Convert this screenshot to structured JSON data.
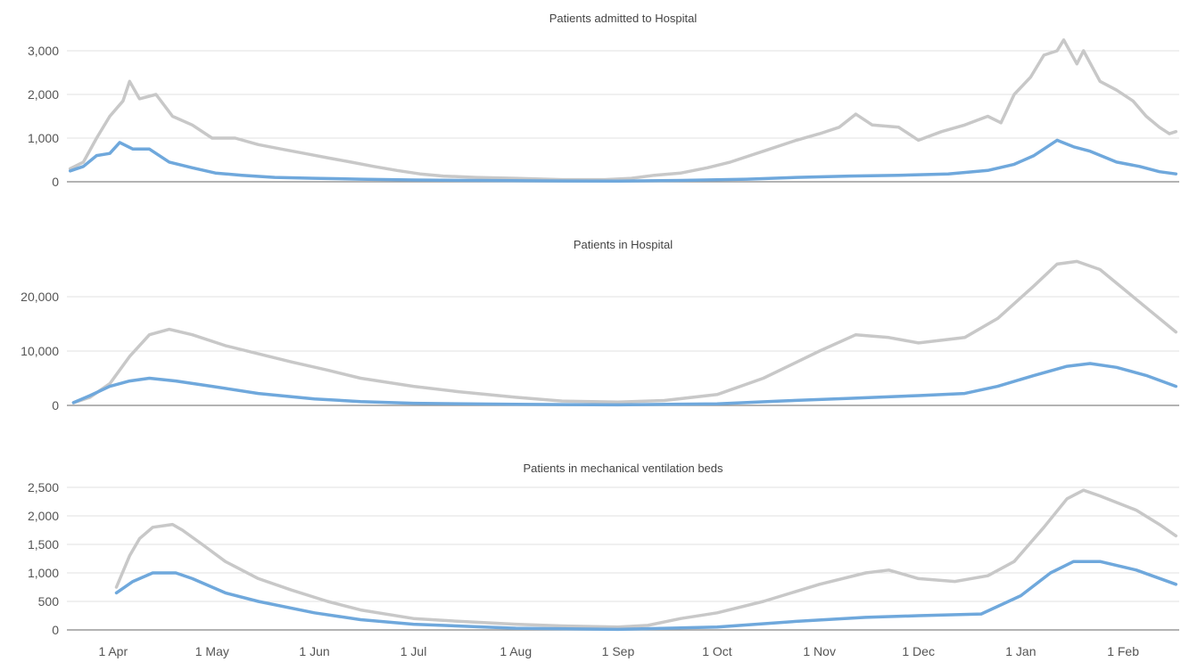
{
  "chart_data": [
    {
      "type": "line",
      "title": "Patients admitted to Hospital",
      "xlabel": "",
      "ylabel": "",
      "ylim": [
        0,
        3000
      ],
      "yticks": [
        0,
        1000,
        2000,
        3000
      ],
      "ytick_labels": [
        "0",
        "1,000",
        "2,000",
        "3,000"
      ],
      "grid": true,
      "legend": "none",
      "series": [
        {
          "color": "#c8c8c8",
          "points": [
            [
              "2020-03-19",
              300
            ],
            [
              "2020-03-23",
              450
            ],
            [
              "2020-03-27",
              1000
            ],
            [
              "2020-03-31",
              1500
            ],
            [
              "2020-04-04",
              1850
            ],
            [
              "2020-04-06",
              2300
            ],
            [
              "2020-04-09",
              1900
            ],
            [
              "2020-04-14",
              2000
            ],
            [
              "2020-04-19",
              1500
            ],
            [
              "2020-04-25",
              1300
            ],
            [
              "2020-05-01",
              1000
            ],
            [
              "2020-05-08",
              1000
            ],
            [
              "2020-05-15",
              850
            ],
            [
              "2020-05-22",
              750
            ],
            [
              "2020-05-29",
              650
            ],
            [
              "2020-06-05",
              550
            ],
            [
              "2020-06-12",
              450
            ],
            [
              "2020-06-19",
              350
            ],
            [
              "2020-06-26",
              260
            ],
            [
              "2020-07-03",
              180
            ],
            [
              "2020-07-10",
              130
            ],
            [
              "2020-07-20",
              100
            ],
            [
              "2020-08-01",
              80
            ],
            [
              "2020-08-15",
              50
            ],
            [
              "2020-08-28",
              50
            ],
            [
              "2020-09-05",
              80
            ],
            [
              "2020-09-12",
              150
            ],
            [
              "2020-09-20",
              200
            ],
            [
              "2020-09-28",
              320
            ],
            [
              "2020-10-05",
              450
            ],
            [
              "2020-10-15",
              700
            ],
            [
              "2020-10-25",
              950
            ],
            [
              "2020-11-01",
              1100
            ],
            [
              "2020-11-07",
              1250
            ],
            [
              "2020-11-12",
              1550
            ],
            [
              "2020-11-17",
              1300
            ],
            [
              "2020-11-25",
              1250
            ],
            [
              "2020-12-01",
              950
            ],
            [
              "2020-12-08",
              1150
            ],
            [
              "2020-12-15",
              1300
            ],
            [
              "2020-12-22",
              1500
            ],
            [
              "2020-12-26",
              1350
            ],
            [
              "2020-12-30",
              2000
            ],
            [
              "2021-01-04",
              2400
            ],
            [
              "2021-01-08",
              2900
            ],
            [
              "2021-01-12",
              3000
            ],
            [
              "2021-01-14",
              3250
            ],
            [
              "2021-01-18",
              2700
            ],
            [
              "2021-01-20",
              3000
            ],
            [
              "2021-01-25",
              2300
            ],
            [
              "2021-01-30",
              2100
            ],
            [
              "2021-02-04",
              1850
            ],
            [
              "2021-02-08",
              1500
            ],
            [
              "2021-02-12",
              1250
            ],
            [
              "2021-02-15",
              1100
            ],
            [
              "2021-02-17",
              1150
            ]
          ]
        },
        {
          "color": "#6fa8dc",
          "points": [
            [
              "2020-03-19",
              250
            ],
            [
              "2020-03-23",
              350
            ],
            [
              "2020-03-27",
              600
            ],
            [
              "2020-03-31",
              650
            ],
            [
              "2020-04-03",
              900
            ],
            [
              "2020-04-07",
              750
            ],
            [
              "2020-04-12",
              750
            ],
            [
              "2020-04-18",
              450
            ],
            [
              "2020-04-25",
              320
            ],
            [
              "2020-05-02",
              200
            ],
            [
              "2020-05-10",
              150
            ],
            [
              "2020-05-20",
              100
            ],
            [
              "2020-06-01",
              80
            ],
            [
              "2020-06-15",
              60
            ],
            [
              "2020-07-01",
              40
            ],
            [
              "2020-07-20",
              30
            ],
            [
              "2020-08-10",
              20
            ],
            [
              "2020-09-01",
              15
            ],
            [
              "2020-09-20",
              30
            ],
            [
              "2020-10-10",
              60
            ],
            [
              "2020-10-25",
              100
            ],
            [
              "2020-11-10",
              130
            ],
            [
              "2020-11-25",
              150
            ],
            [
              "2020-12-10",
              180
            ],
            [
              "2020-12-22",
              260
            ],
            [
              "2020-12-30",
              400
            ],
            [
              "2021-01-05",
              600
            ],
            [
              "2021-01-12",
              950
            ],
            [
              "2021-01-17",
              800
            ],
            [
              "2021-01-22",
              700
            ],
            [
              "2021-01-30",
              450
            ],
            [
              "2021-02-06",
              350
            ],
            [
              "2021-02-12",
              230
            ],
            [
              "2021-02-17",
              180
            ]
          ]
        }
      ]
    },
    {
      "type": "line",
      "title": "Patients in Hospital",
      "xlabel": "",
      "ylabel": "",
      "ylim": [
        0,
        20000
      ],
      "yticks": [
        0,
        10000,
        20000
      ],
      "ytick_labels": [
        "0",
        "10,000",
        "20,000"
      ],
      "grid": true,
      "legend": "none",
      "series": [
        {
          "color": "#c8c8c8",
          "points": [
            [
              "2020-03-20",
              500
            ],
            [
              "2020-03-25",
              1500
            ],
            [
              "2020-03-31",
              4000
            ],
            [
              "2020-04-06",
              9000
            ],
            [
              "2020-04-12",
              13000
            ],
            [
              "2020-04-18",
              14000
            ],
            [
              "2020-04-25",
              13000
            ],
            [
              "2020-05-05",
              11000
            ],
            [
              "2020-05-15",
              9500
            ],
            [
              "2020-05-25",
              8000
            ],
            [
              "2020-06-05",
              6500
            ],
            [
              "2020-06-15",
              5000
            ],
            [
              "2020-07-01",
              3500
            ],
            [
              "2020-07-15",
              2500
            ],
            [
              "2020-08-01",
              1500
            ],
            [
              "2020-08-15",
              800
            ],
            [
              "2020-09-01",
              600
            ],
            [
              "2020-09-15",
              900
            ],
            [
              "2020-10-01",
              2000
            ],
            [
              "2020-10-15",
              5000
            ],
            [
              "2020-11-01",
              10000
            ],
            [
              "2020-11-12",
              13000
            ],
            [
              "2020-11-22",
              12500
            ],
            [
              "2020-12-01",
              11500
            ],
            [
              "2020-12-15",
              12500
            ],
            [
              "2020-12-25",
              16000
            ],
            [
              "2021-01-05",
              22000
            ],
            [
              "2021-01-12",
              26000
            ],
            [
              "2021-01-18",
              26500
            ],
            [
              "2021-01-25",
              25000
            ],
            [
              "2021-02-02",
              21000
            ],
            [
              "2021-02-10",
              17000
            ],
            [
              "2021-02-17",
              13500
            ]
          ]
        },
        {
          "color": "#6fa8dc",
          "points": [
            [
              "2020-03-20",
              500
            ],
            [
              "2020-03-25",
              1800
            ],
            [
              "2020-03-31",
              3500
            ],
            [
              "2020-04-06",
              4500
            ],
            [
              "2020-04-12",
              5000
            ],
            [
              "2020-04-20",
              4500
            ],
            [
              "2020-05-01",
              3500
            ],
            [
              "2020-05-15",
              2200
            ],
            [
              "2020-06-01",
              1200
            ],
            [
              "2020-06-15",
              700
            ],
            [
              "2020-07-01",
              400
            ],
            [
              "2020-08-01",
              200
            ],
            [
              "2020-09-01",
              100
            ],
            [
              "2020-10-01",
              300
            ],
            [
              "2020-10-20",
              800
            ],
            [
              "2020-11-10",
              1300
            ],
            [
              "2020-12-01",
              1800
            ],
            [
              "2020-12-15",
              2200
            ],
            [
              "2020-12-25",
              3500
            ],
            [
              "2021-01-05",
              5500
            ],
            [
              "2021-01-15",
              7200
            ],
            [
              "2021-01-22",
              7700
            ],
            [
              "2021-01-30",
              7000
            ],
            [
              "2021-02-08",
              5500
            ],
            [
              "2021-02-17",
              3500
            ]
          ]
        }
      ]
    },
    {
      "type": "line",
      "title": "Patients in mechanical ventilation beds",
      "xlabel": "",
      "ylabel": "",
      "ylim": [
        0,
        2500
      ],
      "yticks": [
        0,
        500,
        1000,
        1500,
        2000,
        2500
      ],
      "ytick_labels": [
        "0",
        "500",
        "1,000",
        "1,500",
        "2,000",
        "2,500"
      ],
      "x_categories": [
        "1 Apr",
        "1 May",
        "1 Jun",
        "1 Jul",
        "1 Aug",
        "1 Sep",
        "1 Oct",
        "1 Nov",
        "1 Dec",
        "1 Jan",
        "1 Feb"
      ],
      "grid": true,
      "legend": "none",
      "series": [
        {
          "color": "#c8c8c8",
          "points": [
            [
              "2020-04-02",
              750
            ],
            [
              "2020-04-06",
              1300
            ],
            [
              "2020-04-09",
              1600
            ],
            [
              "2020-04-13",
              1800
            ],
            [
              "2020-04-19",
              1850
            ],
            [
              "2020-04-22",
              1750
            ],
            [
              "2020-04-28",
              1500
            ],
            [
              "2020-05-05",
              1200
            ],
            [
              "2020-05-15",
              900
            ],
            [
              "2020-05-25",
              700
            ],
            [
              "2020-06-05",
              500
            ],
            [
              "2020-06-15",
              350
            ],
            [
              "2020-07-01",
              200
            ],
            [
              "2020-07-15",
              150
            ],
            [
              "2020-08-01",
              100
            ],
            [
              "2020-08-15",
              70
            ],
            [
              "2020-09-01",
              50
            ],
            [
              "2020-09-10",
              80
            ],
            [
              "2020-09-20",
              200
            ],
            [
              "2020-10-01",
              300
            ],
            [
              "2020-10-15",
              500
            ],
            [
              "2020-11-01",
              800
            ],
            [
              "2020-11-15",
              1000
            ],
            [
              "2020-11-22",
              1050
            ],
            [
              "2020-12-01",
              900
            ],
            [
              "2020-12-12",
              850
            ],
            [
              "2020-12-22",
              950
            ],
            [
              "2020-12-30",
              1200
            ],
            [
              "2021-01-08",
              1800
            ],
            [
              "2021-01-15",
              2300
            ],
            [
              "2021-01-20",
              2450
            ],
            [
              "2021-01-25",
              2350
            ],
            [
              "2021-02-05",
              2100
            ],
            [
              "2021-02-12",
              1850
            ],
            [
              "2021-02-17",
              1650
            ]
          ]
        },
        {
          "color": "#6fa8dc",
          "points": [
            [
              "2020-04-02",
              650
            ],
            [
              "2020-04-07",
              850
            ],
            [
              "2020-04-13",
              1000
            ],
            [
              "2020-04-20",
              1000
            ],
            [
              "2020-04-25",
              900
            ],
            [
              "2020-05-05",
              650
            ],
            [
              "2020-05-15",
              500
            ],
            [
              "2020-06-01",
              300
            ],
            [
              "2020-06-15",
              180
            ],
            [
              "2020-07-01",
              100
            ],
            [
              "2020-08-01",
              30
            ],
            [
              "2020-09-01",
              10
            ],
            [
              "2020-10-01",
              50
            ],
            [
              "2020-10-25",
              150
            ],
            [
              "2020-11-15",
              220
            ],
            [
              "2020-12-01",
              250
            ],
            [
              "2020-12-20",
              280
            ],
            [
              "2021-01-01",
              600
            ],
            [
              "2021-01-10",
              1000
            ],
            [
              "2021-01-17",
              1200
            ],
            [
              "2021-01-25",
              1200
            ],
            [
              "2021-02-05",
              1050
            ],
            [
              "2021-02-17",
              800
            ]
          ]
        }
      ]
    }
  ]
}
